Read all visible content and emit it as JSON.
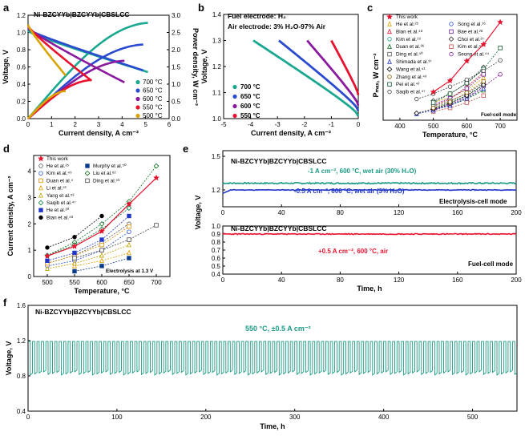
{
  "panels": {
    "a": "a",
    "b": "b",
    "c": "c",
    "d": "d",
    "e": "e",
    "f": "f"
  },
  "colors": {
    "700": "#1aa890",
    "650": "#2a4bd0",
    "600": "#8a1a9e",
    "550": "#e8122e",
    "500": "#d9a400",
    "this_work": "#e8122e",
    "teal": "#1a9a84",
    "blue": "#2036c8",
    "red": "#e8122e"
  },
  "chart_data": [
    {
      "id": "a",
      "type": "line",
      "title": "Ni-BZCYYb|BZCYYb|CBSLCC",
      "xlabel": "Current density, A cm⁻²",
      "ylabel": "Voltage, V",
      "y2label": "Power density, W cm⁻²",
      "xlim": [
        0,
        6
      ],
      "ylim": [
        0,
        1.2
      ],
      "y2lim": [
        0,
        3.0
      ],
      "xticks": [
        "0",
        "1",
        "2",
        "3",
        "4",
        "5",
        "6"
      ],
      "yticks": [
        "0.0",
        "0.2",
        "0.4",
        "0.6",
        "0.8",
        "1.0",
        "1.2"
      ],
      "y2ticks": [
        "0.0",
        "0.5",
        "1.0",
        "1.5",
        "2.0",
        "2.5",
        "3.0"
      ],
      "series": [
        {
          "name": "700 °C",
          "key": "700",
          "jmax": 5.1,
          "ocv": 1.02,
          "vend": 0.54,
          "pmax": 2.78
        },
        {
          "name": "650 °C",
          "key": "650",
          "jmax": 4.9,
          "ocv": 1.04,
          "vend": 0.56,
          "pmax": 2.15
        },
        {
          "name": "600 °C",
          "key": "600",
          "jmax": 4.1,
          "ocv": 1.06,
          "vend": 0.42,
          "pmax": 1.68
        },
        {
          "name": "550 °C",
          "key": "550",
          "jmax": 2.7,
          "ocv": 1.08,
          "vend": 0.44,
          "pmax": 1.12
        },
        {
          "name": "500 °C",
          "key": "500",
          "jmax": 1.6,
          "ocv": 1.09,
          "vend": 0.5,
          "pmax": 0.8
        }
      ]
    },
    {
      "id": "b",
      "type": "line",
      "annotation1": "Fuel electrode: H₂",
      "annotation2": "Air electrode: 3% H₂O-97% Air",
      "xlabel": "Current density, A cm⁻²",
      "ylabel": "Voltage, V",
      "xlim": [
        -5,
        0
      ],
      "ylim": [
        1.0,
        1.4
      ],
      "xticks": [
        "-5",
        "-4",
        "-3",
        "-2",
        "-1",
        "0"
      ],
      "yticks": [
        "1.0",
        "1.1",
        "1.2",
        "1.3",
        "1.4"
      ],
      "series": [
        {
          "name": "700 °C",
          "key": "700",
          "jmin": -3.9,
          "v0": 1.01,
          "vmax": 1.3
        },
        {
          "name": "650 °C",
          "key": "650",
          "jmin": -2.95,
          "v0": 1.03,
          "vmax": 1.3
        },
        {
          "name": "600 °C",
          "key": "600",
          "jmin": -1.9,
          "v0": 1.05,
          "vmax": 1.3
        },
        {
          "name": "550 °C",
          "key": "550",
          "jmin": -1.0,
          "v0": 1.09,
          "vmax": 1.3
        }
      ]
    },
    {
      "id": "c",
      "type": "scatter",
      "xlabel": "Temperature, °C",
      "ylabel": "Pₘₐₓ, W cm⁻²",
      "xlim": [
        350,
        750
      ],
      "xticks": [
        "400",
        "500",
        "600",
        "700"
      ],
      "note": "Fuel-cell mode",
      "this_work": {
        "name": "This work",
        "x": [
          500,
          550,
          600,
          650,
          700
        ],
        "y": [
          0.8,
          1.12,
          1.68,
          2.15,
          2.78
        ]
      },
      "refs": [
        {
          "name": "He et al.²⁵",
          "x": [
            500,
            550,
            600,
            650
          ],
          "y": [
            0.5,
            0.65,
            0.85,
            1.2
          ]
        },
        {
          "name": "Song et al.¹⁶",
          "x": [
            500,
            550,
            600,
            650
          ],
          "y": [
            0.3,
            0.45,
            0.65,
            0.95
          ]
        },
        {
          "name": "Bian et al.⁴⁸",
          "x": [
            500,
            550,
            600,
            650
          ],
          "y": [
            0.4,
            0.6,
            0.95,
            1.35
          ]
        },
        {
          "name": "Bae et al.²⁸",
          "x": [
            500,
            550,
            600,
            650
          ],
          "y": [
            0.45,
            0.62,
            0.9,
            1.3
          ]
        },
        {
          "name": "Kim et al.¹⁹",
          "x": [
            500,
            550,
            600,
            650
          ],
          "y": [
            0.35,
            0.5,
            0.7,
            1.0
          ]
        },
        {
          "name": "Choi et al.²⁷",
          "x": [
            500,
            550,
            600,
            650
          ],
          "y": [
            0.55,
            0.75,
            1.05,
            1.5
          ]
        },
        {
          "name": "Duan et al.³⁶",
          "x": [
            500,
            550,
            600,
            650
          ],
          "y": [
            0.3,
            0.42,
            0.6,
            0.85
          ]
        },
        {
          "name": "Kim et al.⁴¹",
          "x": [
            500,
            550,
            600,
            650
          ],
          "y": [
            0.25,
            0.35,
            0.5,
            0.7
          ]
        },
        {
          "name": "Ding et al.⁴⁰",
          "x": [
            500,
            550,
            600,
            650
          ],
          "y": [
            0.4,
            0.55,
            0.75,
            1.05
          ]
        },
        {
          "name": "Seong et al.⁴⁴",
          "x": [
            500,
            550,
            600,
            650,
            700
          ],
          "y": [
            0.3,
            0.45,
            0.65,
            0.95,
            1.3
          ]
        },
        {
          "name": "Shimada et al.³⁷",
          "x": [
            450,
            500,
            550,
            600,
            650
          ],
          "y": [
            0.18,
            0.28,
            0.42,
            0.62,
            0.9
          ]
        },
        {
          "name": "Wang et al.⁴¹",
          "x": [
            450,
            500,
            550,
            600,
            650
          ],
          "y": [
            0.2,
            0.32,
            0.48,
            0.7,
            1.0
          ]
        },
        {
          "name": "Zhang et al.⁴³",
          "x": [
            500,
            550,
            600,
            650
          ],
          "y": [
            0.35,
            0.52,
            0.78,
            1.1
          ]
        },
        {
          "name": "Pei et al.⁴²",
          "x": [
            500,
            550,
            600,
            650,
            700
          ],
          "y": [
            0.5,
            0.75,
            1.05,
            1.45,
            2.05
          ]
        },
        {
          "name": "Saqib et al.⁴⁷",
          "x": [
            450,
            500,
            550,
            600,
            650,
            700
          ],
          "y": [
            0.6,
            0.75,
            0.95,
            1.15,
            1.4,
            1.7
          ]
        }
      ]
    },
    {
      "id": "d",
      "type": "scatter",
      "xlabel": "Temperature, °C",
      "ylabel": "Current density, A cm⁻²",
      "xlim": [
        475,
        725
      ],
      "ylim": [
        0,
        4.6
      ],
      "xticks": [
        "500",
        "550",
        "600",
        "650",
        "700"
      ],
      "yticks": [
        "0",
        "1",
        "2",
        "3",
        "4"
      ],
      "note": "Electrolysis at 1.3 V",
      "this_work": {
        "name": "This work",
        "x": [
          500,
          550,
          600,
          650,
          700
        ],
        "y": [
          0.78,
          1.15,
          1.72,
          2.75,
          3.75
        ]
      },
      "refs": [
        {
          "name": "He et al.²⁵",
          "x": [
            500,
            550,
            600,
            650
          ],
          "y": [
            0.5,
            0.8,
            1.3,
            2.0
          ]
        },
        {
          "name": "Murphy et al.⁵⁰",
          "x": [
            550,
            600,
            650
          ],
          "y": [
            0.2,
            0.4,
            0.7
          ]
        },
        {
          "name": "Kim et al.⁴⁹",
          "x": [
            500,
            550,
            600,
            650
          ],
          "y": [
            0.4,
            0.6,
            1.0,
            1.7
          ]
        },
        {
          "name": "Liu et al.⁶²",
          "x": [
            500,
            550,
            600,
            650,
            700
          ],
          "y": [
            0.8,
            1.3,
            2.0,
            2.85,
            4.2
          ]
        },
        {
          "name": "Duan et al.⁴",
          "x": [
            500,
            550,
            600,
            650
          ],
          "y": [
            0.5,
            0.8,
            1.2,
            1.9
          ]
        },
        {
          "name": "Ding et al.⁵³",
          "x": [
            550,
            600,
            650,
            700
          ],
          "y": [
            0.7,
            1.0,
            1.4,
            1.95
          ]
        },
        {
          "name": "Li et al.⁵¹",
          "x": [
            550,
            600,
            650
          ],
          "y": [
            0.4,
            0.6,
            0.9
          ]
        },
        {
          "name": "Yang et al.⁵³",
          "x": [
            500,
            550,
            600,
            650
          ],
          "y": [
            0.3,
            0.5,
            0.8,
            1.2
          ]
        },
        {
          "name": "Saqib et al.⁴⁷",
          "x": [
            500,
            550,
            600,
            650
          ],
          "y": [
            0.8,
            1.2,
            1.8,
            2.6
          ]
        },
        {
          "name": "He et al.²⁰",
          "x": [
            500,
            550,
            600,
            650
          ],
          "y": [
            0.6,
            0.9,
            1.4,
            2.3
          ]
        },
        {
          "name": "Bian et al.⁴⁸",
          "x": [
            500,
            550,
            600
          ],
          "y": [
            1.1,
            1.5,
            2.3
          ]
        }
      ]
    },
    {
      "id": "e",
      "type": "line",
      "title_top": "Ni-BZCYYb|BZCYYb|CBSLCC",
      "title_bottom": "Ni-BZCYYb|BZCYYb|CBSLCC",
      "label_teal": "-1 A cm⁻², 600 °C, wet air (30% H₂O)",
      "label_blue": "-0.5 A cm⁻², 600 °C, wet air (3% H₂O)",
      "label_red": "+0.5 A cm⁻², 600 °C, air",
      "mode_top": "Electrolysis-cell mode",
      "mode_bottom": "Fuel-cell mode",
      "xlabel": "Time, h",
      "ylabel": "Voltage, V",
      "xlim": [
        0,
        200
      ],
      "xticks": [
        "0",
        "40",
        "80",
        "120",
        "160",
        "200"
      ],
      "top_yticks": [
        "1.2",
        "1.5"
      ],
      "bottom_yticks": [
        "0.4",
        "0.5",
        "0.6",
        "0.7",
        "0.8",
        "0.9",
        "1.0"
      ],
      "teal_v": 1.26,
      "blue_v": 1.2,
      "red_v": 0.9
    },
    {
      "id": "f",
      "type": "line",
      "title": "Ni-BZCYYb|BZCYYb|CBSLCC",
      "annotation": "550 °C, ±0.5 A cm⁻²",
      "xlabel": "Time, h",
      "ylabel": "Voltage, V",
      "xlim": [
        0,
        550
      ],
      "ylim": [
        0.4,
        1.6
      ],
      "xticks": [
        "0",
        "100",
        "200",
        "300",
        "400",
        "500"
      ],
      "yticks": [
        "0.4",
        "0.8",
        "1.2",
        "1.6"
      ],
      "v_high": 1.19,
      "v_low": 0.81,
      "cycles": 110
    }
  ]
}
